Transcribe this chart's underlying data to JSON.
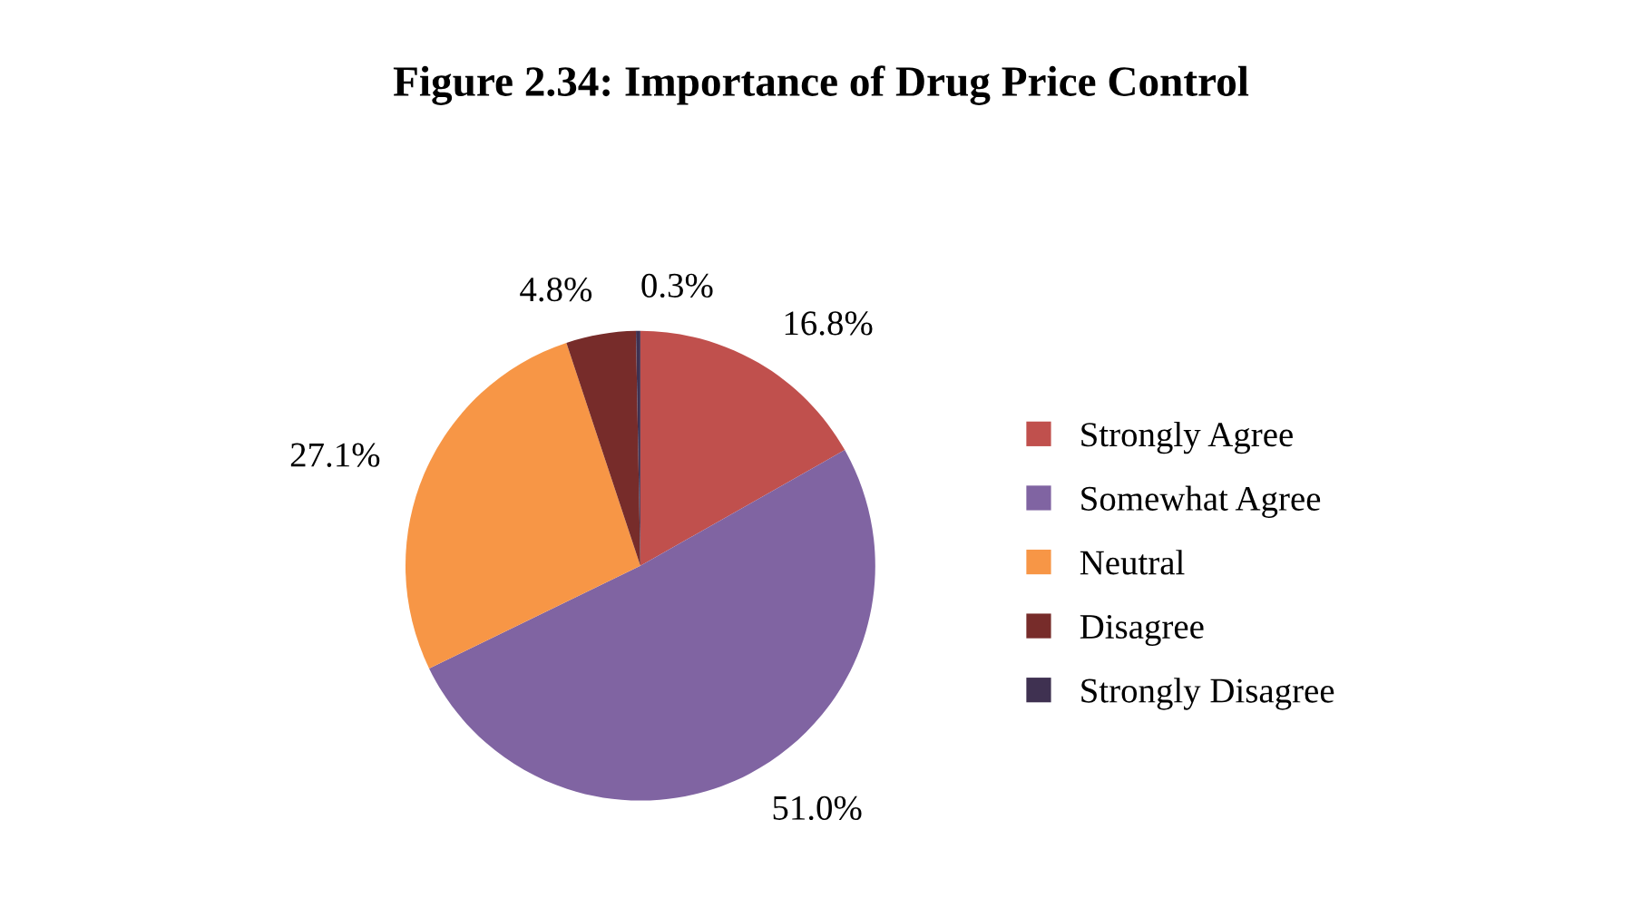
{
  "chart_data": {
    "type": "pie",
    "title": "Figure 2.34: Importance of Drug Price Control",
    "categories": [
      "Strongly Agree",
      "Somewhat Agree",
      "Neutral",
      "Disagree",
      "Strongly Disagree"
    ],
    "values": [
      16.8,
      51.0,
      27.1,
      4.8,
      0.3
    ],
    "value_labels": [
      "16.8%",
      "51.0%",
      "27.1%",
      "4.8%",
      "0.3%"
    ],
    "colors": [
      "#c0504d",
      "#8064a2",
      "#f79646",
      "#772c2a",
      "#3f3151"
    ],
    "legend": "right"
  }
}
